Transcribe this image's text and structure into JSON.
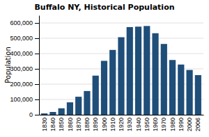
{
  "chart_data": {
    "type": "bar",
    "title": "Buffalo NY, Historical Population",
    "ylabel": "Population",
    "categories": [
      "1830",
      "1840",
      "1850",
      "1860",
      "1870",
      "1880",
      "1890",
      "1900",
      "1910",
      "1920",
      "1930",
      "1940",
      "1950",
      "1960",
      "1970",
      "1980",
      "1990",
      "2000",
      "2006"
    ],
    "values": [
      8668,
      18213,
      42261,
      81129,
      117714,
      155134,
      255664,
      352387,
      423715,
      506775,
      573076,
      575901,
      580132,
      532759,
      462768,
      357870,
      328123,
      292648,
      258959
    ],
    "color": "#1f4e79",
    "ylim": [
      0,
      650000
    ],
    "yticks": [
      0,
      {
        "value": 100000,
        "label": "100,000"
      },
      {
        "value": 200000,
        "label": "200,000"
      },
      {
        "value": 300000,
        "label": "300,000"
      },
      {
        "value": 400000,
        "label": "400,000"
      },
      {
        "value": 500000,
        "label": "500,000"
      },
      {
        "value": 600000,
        "label": "600,000"
      }
    ],
    "grid": true
  }
}
